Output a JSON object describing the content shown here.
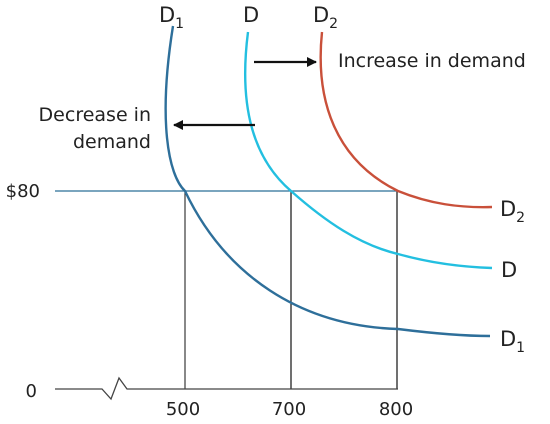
{
  "chart_data": {
    "type": "line",
    "title": "",
    "xlabel": "",
    "ylabel": "",
    "origin_label": "0",
    "x_ticks": [
      "500",
      "700",
      "800"
    ],
    "y_ticks": [
      "$80"
    ],
    "price_line": {
      "label": "$80",
      "color": "#2b6f96"
    },
    "series": [
      {
        "key": "D1",
        "name": "D",
        "subscript": "1",
        "color": "#2e6f9a",
        "crossing_quantity_at_80": 500
      },
      {
        "key": "D",
        "name": "D",
        "subscript": "",
        "color": "#23bfe0",
        "crossing_quantity_at_80": 700
      },
      {
        "key": "D2",
        "name": "D",
        "subscript": "2",
        "color": "#c9503a",
        "crossing_quantity_at_80": 800
      }
    ],
    "annotations": {
      "increase": "Increase in demand",
      "decrease_line1": "Decrease in",
      "decrease_line2": "demand"
    },
    "axis_break": true
  }
}
